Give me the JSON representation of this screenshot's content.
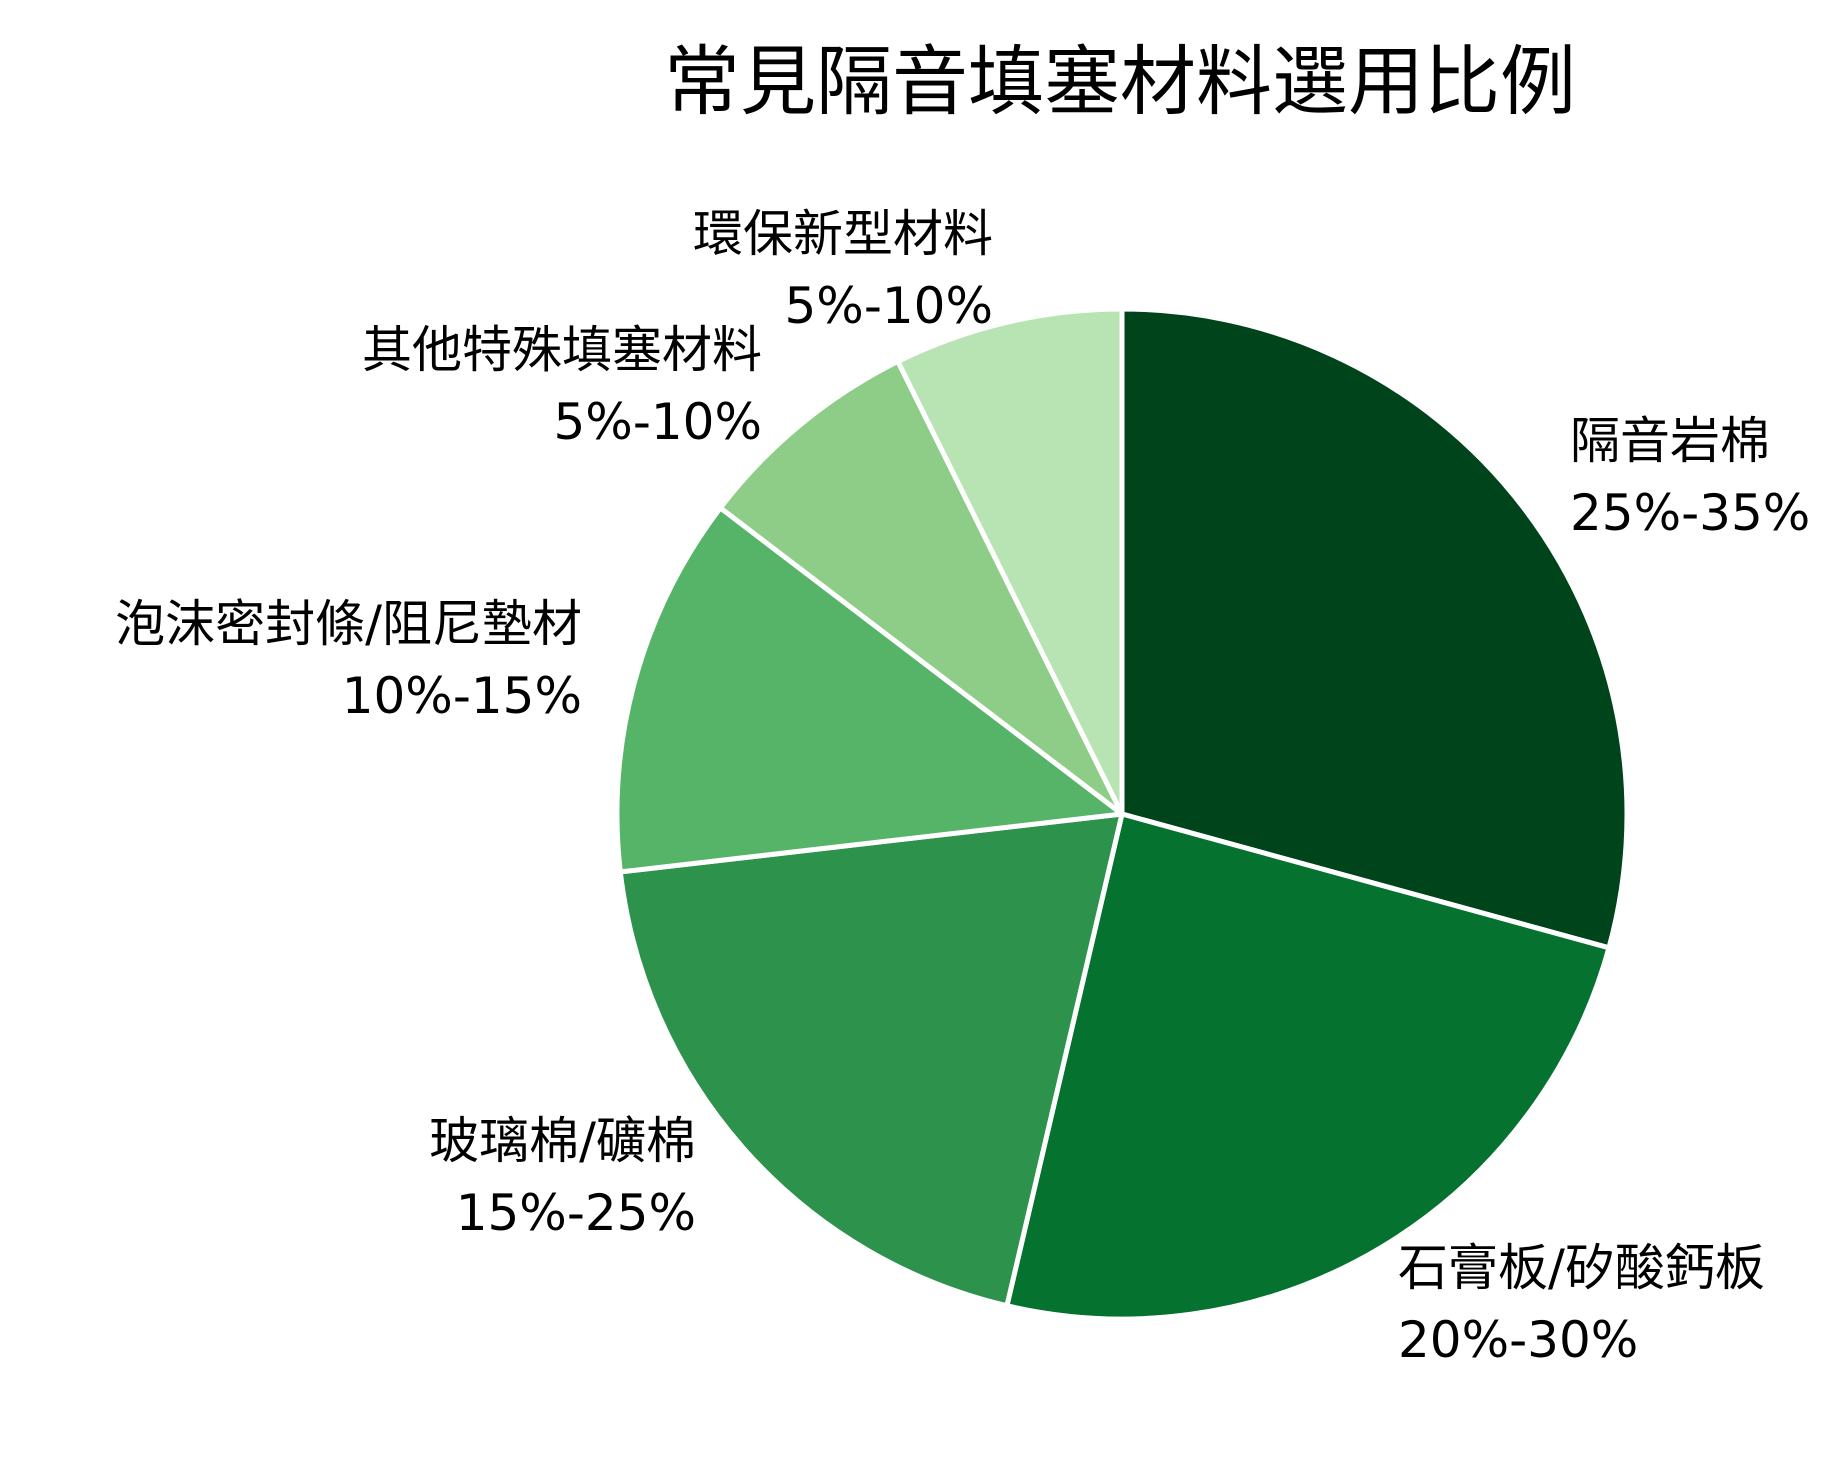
{
  "chart_data": {
    "type": "pie",
    "title": "常見隔音填塞材料選用比例",
    "start_angle_deg": 0,
    "direction": "clockwise",
    "slices": [
      {
        "label": "隔音岩棉",
        "range": "25%-35%",
        "value": 30,
        "color": "#00441b"
      },
      {
        "label": "石膏板/矽酸鈣板",
        "range": "20%-30%",
        "value": 25,
        "color": "#067230"
      },
      {
        "label": "玻璃棉/礦棉",
        "range": "15%-25%",
        "value": 20,
        "color": "#2d924b"
      },
      {
        "label": "泡沫密封條/阻尼墊材",
        "range": "10%-15%",
        "value": 12.5,
        "color": "#56b469"
      },
      {
        "label": "其他特殊填塞材料",
        "range": "5%-10%",
        "value": 7.5,
        "color": "#8ecd87"
      },
      {
        "label": "環保新型材料",
        "range": "5%-10%",
        "value": 7.5,
        "color": "#b8e3b3"
      }
    ],
    "slice_border_color": "#ffffff"
  }
}
